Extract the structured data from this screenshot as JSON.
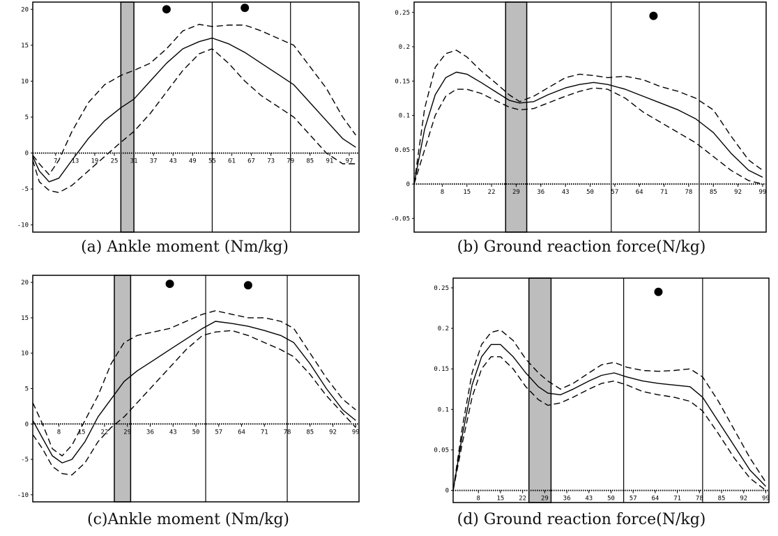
{
  "chart_data": [
    {
      "id": "a",
      "type": "line",
      "caption": "(a) Ankle moment (Nm/kg)",
      "ylim": [
        -11,
        21
      ],
      "xlim": [
        0,
        100
      ],
      "y_ticks": [
        {
          "value": 20,
          "label": "20"
        },
        {
          "value": 15,
          "label": "15"
        },
        {
          "value": 10,
          "label": "10"
        },
        {
          "value": 5,
          "label": "5"
        },
        {
          "value": 0,
          "label": "0"
        },
        {
          "value": -5,
          "label": "-5"
        },
        {
          "value": -10,
          "label": "-10"
        }
      ],
      "x_ticks": [
        {
          "value": 7,
          "label": "7"
        },
        {
          "value": 13,
          "label": "13"
        },
        {
          "value": 19,
          "label": "19"
        },
        {
          "value": 25,
          "label": "25"
        },
        {
          "value": 31,
          "label": "31"
        },
        {
          "value": 37,
          "label": "37"
        },
        {
          "value": 43,
          "label": "43"
        },
        {
          "value": 49,
          "label": "49"
        },
        {
          "value": 55,
          "label": "55"
        },
        {
          "value": 61,
          "label": "61"
        },
        {
          "value": 67,
          "label": "67"
        },
        {
          "value": 73,
          "label": "73"
        },
        {
          "value": 79,
          "label": "79"
        },
        {
          "value": 85,
          "label": "85"
        },
        {
          "value": 91,
          "label": "91"
        },
        {
          "value": 97,
          "label": "97"
        }
      ],
      "shaded_band": [
        27,
        31
      ],
      "vlines": [
        55,
        79
      ],
      "markers": [
        {
          "x": 41,
          "y": 20
        },
        {
          "x": 65,
          "y": 20.2
        }
      ],
      "series": [
        {
          "style": "solid",
          "x": [
            0,
            2,
            5,
            8,
            12,
            17,
            22,
            27,
            31,
            36,
            41,
            46,
            51,
            55,
            60,
            65,
            70,
            75,
            80,
            85,
            90,
            95,
            99
          ],
          "y": [
            -0.5,
            -2.5,
            -4.0,
            -3.5,
            -1.0,
            2.0,
            4.5,
            6.3,
            7.5,
            10.0,
            12.5,
            14.5,
            15.5,
            16.0,
            15.2,
            14.0,
            12.5,
            11.0,
            9.5,
            7.0,
            4.5,
            2.0,
            0.8
          ]
        },
        {
          "style": "dashed",
          "x": [
            0,
            2,
            5,
            8,
            12,
            17,
            22,
            27,
            31,
            36,
            41,
            46,
            51,
            55,
            60,
            65,
            70,
            75,
            80,
            85,
            90,
            95,
            99
          ],
          "y": [
            -0.3,
            -1.5,
            -3.0,
            -1.0,
            3.0,
            7.0,
            9.5,
            10.8,
            11.5,
            12.5,
            14.5,
            17.0,
            17.9,
            17.6,
            17.8,
            17.8,
            17.0,
            16.0,
            15.0,
            12.0,
            9.0,
            5.0,
            2.5
          ]
        },
        {
          "style": "dashed",
          "x": [
            0,
            2,
            5,
            8,
            12,
            17,
            22,
            27,
            31,
            36,
            41,
            46,
            51,
            55,
            60,
            65,
            70,
            75,
            80,
            85,
            90,
            95,
            99
          ],
          "y": [
            -1.0,
            -4.0,
            -5.2,
            -5.5,
            -4.5,
            -2.5,
            -0.5,
            1.5,
            3.0,
            5.5,
            8.5,
            11.5,
            13.8,
            14.5,
            12.5,
            10.0,
            8.0,
            6.5,
            5.0,
            2.5,
            0.0,
            -1.5,
            -1.5
          ]
        }
      ]
    },
    {
      "id": "b",
      "type": "line",
      "caption": "(b) Ground reaction force(N/kg)",
      "ylim": [
        -0.07,
        0.265
      ],
      "xlim": [
        0,
        100
      ],
      "y_ticks": [
        {
          "value": 0.25,
          "label": "0.25"
        },
        {
          "value": 0.2,
          "label": "0.2"
        },
        {
          "value": 0.15,
          "label": "0.15"
        },
        {
          "value": 0.1,
          "label": "0.1"
        },
        {
          "value": 0.05,
          "label": "0.05"
        },
        {
          "value": 0,
          "label": "0"
        },
        {
          "value": -0.05,
          "label": "-0.05"
        }
      ],
      "x_ticks": [
        {
          "value": 8,
          "label": "8"
        },
        {
          "value": 15,
          "label": "15"
        },
        {
          "value": 22,
          "label": "22"
        },
        {
          "value": 29,
          "label": "29"
        },
        {
          "value": 36,
          "label": "36"
        },
        {
          "value": 43,
          "label": "43"
        },
        {
          "value": 50,
          "label": "50"
        },
        {
          "value": 57,
          "label": "57"
        },
        {
          "value": 64,
          "label": "64"
        },
        {
          "value": 71,
          "label": "71"
        },
        {
          "value": 78,
          "label": "78"
        },
        {
          "value": 85,
          "label": "85"
        },
        {
          "value": 92,
          "label": "92"
        },
        {
          "value": 99,
          "label": "99"
        }
      ],
      "shaded_band": [
        26,
        32
      ],
      "vlines": [
        56,
        81
      ],
      "markers": [
        {
          "x": 68,
          "y": 0.245
        }
      ],
      "series": [
        {
          "style": "solid",
          "x": [
            0,
            3,
            6,
            9,
            12,
            15,
            19,
            23,
            27,
            30,
            34,
            38,
            43,
            47,
            51,
            55,
            60,
            65,
            70,
            75,
            80,
            85,
            90,
            95,
            99
          ],
          "y": [
            0.0,
            0.08,
            0.13,
            0.155,
            0.163,
            0.16,
            0.148,
            0.135,
            0.122,
            0.118,
            0.12,
            0.13,
            0.14,
            0.145,
            0.148,
            0.145,
            0.138,
            0.128,
            0.118,
            0.108,
            0.095,
            0.075,
            0.045,
            0.02,
            0.01
          ]
        },
        {
          "style": "dashed",
          "x": [
            0,
            3,
            6,
            9,
            12,
            15,
            19,
            23,
            27,
            30,
            34,
            38,
            43,
            47,
            51,
            55,
            60,
            65,
            70,
            75,
            80,
            85,
            90,
            95,
            99
          ],
          "y": [
            0.0,
            0.11,
            0.17,
            0.19,
            0.195,
            0.185,
            0.165,
            0.148,
            0.13,
            0.12,
            0.128,
            0.14,
            0.155,
            0.16,
            0.158,
            0.155,
            0.157,
            0.152,
            0.142,
            0.135,
            0.125,
            0.108,
            0.07,
            0.035,
            0.02
          ]
        },
        {
          "style": "dashed",
          "x": [
            0,
            3,
            6,
            9,
            12,
            15,
            19,
            23,
            27,
            30,
            34,
            38,
            43,
            47,
            51,
            55,
            60,
            65,
            70,
            75,
            80,
            85,
            90,
            95,
            99
          ],
          "y": [
            0.0,
            0.05,
            0.1,
            0.128,
            0.138,
            0.138,
            0.132,
            0.122,
            0.112,
            0.108,
            0.11,
            0.118,
            0.128,
            0.135,
            0.14,
            0.138,
            0.125,
            0.105,
            0.09,
            0.075,
            0.06,
            0.04,
            0.02,
            0.005,
            0.0
          ]
        }
      ]
    },
    {
      "id": "c",
      "type": "line",
      "caption": "(c)Ankle moment (Nm/kg)",
      "ylim": [
        -11,
        21
      ],
      "xlim": [
        0,
        100
      ],
      "y_ticks": [
        {
          "value": 20,
          "label": "20"
        },
        {
          "value": 15,
          "label": "15"
        },
        {
          "value": 10,
          "label": "10"
        },
        {
          "value": 5,
          "label": "5"
        },
        {
          "value": 0,
          "label": "0"
        },
        {
          "value": -5,
          "label": "-5"
        },
        {
          "value": -10,
          "label": "-10"
        }
      ],
      "x_ticks": [
        {
          "value": 8,
          "label": "8"
        },
        {
          "value": 15,
          "label": "15"
        },
        {
          "value": 22,
          "label": "22"
        },
        {
          "value": 29,
          "label": "29"
        },
        {
          "value": 36,
          "label": "36"
        },
        {
          "value": 43,
          "label": "43"
        },
        {
          "value": 50,
          "label": "50"
        },
        {
          "value": 57,
          "label": "57"
        },
        {
          "value": 64,
          "label": "64"
        },
        {
          "value": 71,
          "label": "71"
        },
        {
          "value": 78,
          "label": "78"
        },
        {
          "value": 85,
          "label": "85"
        },
        {
          "value": 92,
          "label": "92"
        },
        {
          "value": 99,
          "label": "99"
        }
      ],
      "shaded_band": [
        25,
        30
      ],
      "vlines": [
        53,
        78
      ],
      "markers": [
        {
          "x": 42,
          "y": 19.8
        },
        {
          "x": 66,
          "y": 19.6
        }
      ],
      "series": [
        {
          "style": "solid",
          "x": [
            0,
            3,
            6,
            9,
            12,
            16,
            20,
            24,
            28,
            32,
            37,
            42,
            47,
            52,
            56,
            61,
            66,
            71,
            76,
            80,
            85,
            90,
            95,
            99
          ],
          "y": [
            0.5,
            -2.0,
            -4.5,
            -5.5,
            -5.0,
            -2.5,
            1.0,
            3.5,
            6.0,
            7.5,
            9.0,
            10.5,
            12.0,
            13.5,
            14.5,
            14.2,
            13.8,
            13.2,
            12.5,
            11.5,
            8.5,
            5.0,
            2.0,
            0.5
          ]
        },
        {
          "style": "dashed",
          "x": [
            0,
            3,
            6,
            9,
            12,
            16,
            20,
            24,
            28,
            32,
            37,
            42,
            47,
            52,
            56,
            61,
            66,
            71,
            76,
            80,
            85,
            90,
            95,
            99
          ],
          "y": [
            3.0,
            0.0,
            -3.5,
            -4.5,
            -3.0,
            0.5,
            4.0,
            8.5,
            11.5,
            12.5,
            13.0,
            13.5,
            14.5,
            15.5,
            16.0,
            15.5,
            15.0,
            15.0,
            14.5,
            13.5,
            10.0,
            6.5,
            3.5,
            2.0
          ]
        },
        {
          "style": "dashed",
          "x": [
            0,
            3,
            6,
            9,
            12,
            16,
            20,
            24,
            28,
            32,
            37,
            42,
            47,
            52,
            56,
            61,
            66,
            71,
            76,
            80,
            85,
            90,
            95,
            99
          ],
          "y": [
            -1.5,
            -3.5,
            -6.0,
            -7.0,
            -7.2,
            -5.5,
            -2.5,
            -0.5,
            1.0,
            3.0,
            5.5,
            8.0,
            10.5,
            12.5,
            13.0,
            13.2,
            12.5,
            11.5,
            10.5,
            9.5,
            7.0,
            4.0,
            1.5,
            -0.5
          ]
        }
      ]
    },
    {
      "id": "d",
      "type": "line",
      "caption": "(d) Ground reaction force(N/kg)",
      "ylim": [
        -0.015,
        0.262
      ],
      "xlim": [
        0,
        100
      ],
      "y_ticks": [
        {
          "value": 0.25,
          "label": "0.25"
        },
        {
          "value": 0.2,
          "label": "0.2"
        },
        {
          "value": 0.15,
          "label": "0.15"
        },
        {
          "value": 0.1,
          "label": "0.1"
        },
        {
          "value": 0.05,
          "label": "0.05"
        },
        {
          "value": 0,
          "label": "0"
        }
      ],
      "x_ticks": [
        {
          "value": 8,
          "label": "8"
        },
        {
          "value": 15,
          "label": "15"
        },
        {
          "value": 22,
          "label": "22"
        },
        {
          "value": 29,
          "label": "29"
        },
        {
          "value": 36,
          "label": "36"
        },
        {
          "value": 43,
          "label": "43"
        },
        {
          "value": 50,
          "label": "50"
        },
        {
          "value": 57,
          "label": "57"
        },
        {
          "value": 64,
          "label": "64"
        },
        {
          "value": 71,
          "label": "71"
        },
        {
          "value": 78,
          "label": "78"
        },
        {
          "value": 85,
          "label": "85"
        },
        {
          "value": 92,
          "label": "92"
        },
        {
          "value": 99,
          "label": "99"
        }
      ],
      "shaded_band": [
        24,
        31
      ],
      "vlines": [
        54,
        79
      ],
      "markers": [
        {
          "x": 65,
          "y": 0.245
        }
      ],
      "series": [
        {
          "style": "solid",
          "x": [
            0,
            3,
            6,
            9,
            12,
            15,
            19,
            23,
            27,
            30,
            34,
            38,
            43,
            47,
            51,
            55,
            60,
            65,
            70,
            75,
            79,
            84,
            89,
            94,
            99
          ],
          "y": [
            0.0,
            0.07,
            0.13,
            0.165,
            0.18,
            0.18,
            0.165,
            0.145,
            0.128,
            0.12,
            0.118,
            0.125,
            0.135,
            0.142,
            0.145,
            0.14,
            0.135,
            0.132,
            0.13,
            0.128,
            0.115,
            0.085,
            0.055,
            0.025,
            0.005
          ]
        },
        {
          "style": "dashed",
          "x": [
            0,
            3,
            6,
            9,
            12,
            15,
            19,
            23,
            27,
            30,
            34,
            38,
            43,
            47,
            51,
            55,
            60,
            65,
            70,
            75,
            79,
            84,
            89,
            94,
            99
          ],
          "y": [
            0.0,
            0.08,
            0.145,
            0.18,
            0.195,
            0.198,
            0.185,
            0.162,
            0.145,
            0.135,
            0.125,
            0.132,
            0.145,
            0.155,
            0.158,
            0.152,
            0.148,
            0.147,
            0.148,
            0.15,
            0.14,
            0.11,
            0.075,
            0.04,
            0.01
          ]
        },
        {
          "style": "dashed",
          "x": [
            0,
            3,
            6,
            9,
            12,
            15,
            19,
            23,
            27,
            30,
            34,
            38,
            43,
            47,
            51,
            55,
            60,
            65,
            70,
            75,
            79,
            84,
            89,
            94,
            99
          ],
          "y": [
            0.0,
            0.06,
            0.115,
            0.15,
            0.165,
            0.165,
            0.15,
            0.128,
            0.112,
            0.105,
            0.108,
            0.115,
            0.125,
            0.132,
            0.135,
            0.13,
            0.122,
            0.118,
            0.115,
            0.11,
            0.098,
            0.07,
            0.04,
            0.015,
            0.0
          ]
        }
      ]
    }
  ]
}
